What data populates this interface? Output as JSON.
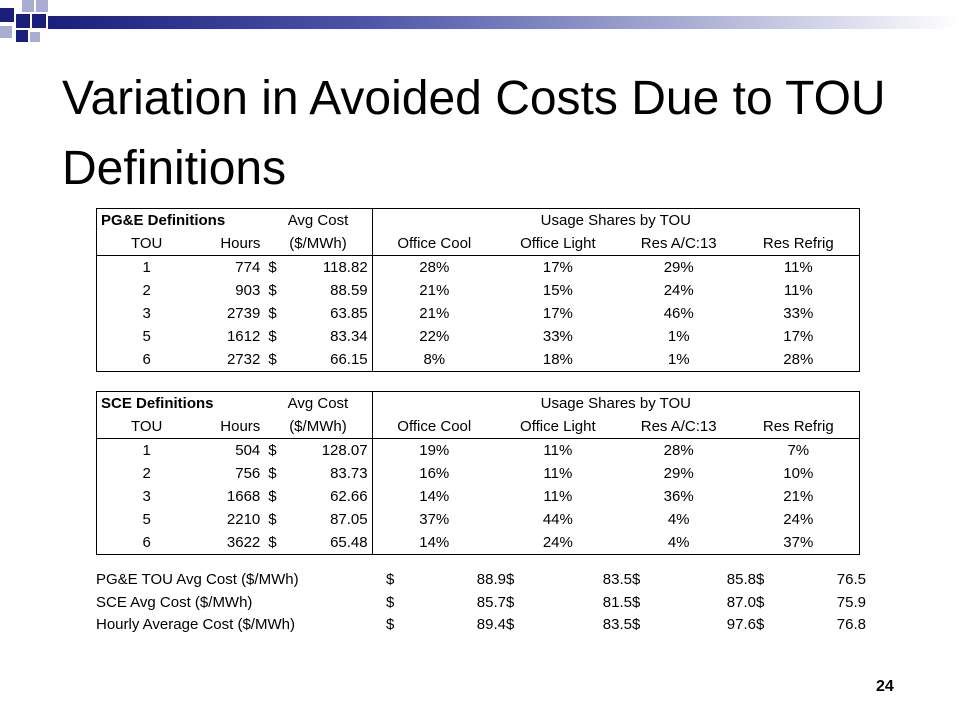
{
  "slide": {
    "title": "Variation in Avoided Costs Due to TOU Definitions",
    "page_number": "24"
  },
  "colors": {
    "accent_dark": "#1a1f7c",
    "accent_mid": "#4d55a8",
    "accent_light": "#a9add3"
  },
  "pge_table": {
    "caption": "PG&E Definitions",
    "avg_cost_header": "Avg Cost",
    "avg_cost_unit": "($/MWh)",
    "usage_header": "Usage Shares by TOU",
    "col_tou": "TOU",
    "col_hours": "Hours",
    "col_office_cool": "Office Cool",
    "col_office_light": "Office Light",
    "col_res_ac": "Res A/C:13",
    "col_res_refrig": "Res Refrig",
    "rows": [
      {
        "tou": "1",
        "hours": "774",
        "cur": "$",
        "cost": "118.82",
        "oc": "28%",
        "ol": "17%",
        "ac": "29%",
        "rf": "11%"
      },
      {
        "tou": "2",
        "hours": "903",
        "cur": "$",
        "cost": "88.59",
        "oc": "21%",
        "ol": "15%",
        "ac": "24%",
        "rf": "11%"
      },
      {
        "tou": "3",
        "hours": "2739",
        "cur": "$",
        "cost": "63.85",
        "oc": "21%",
        "ol": "17%",
        "ac": "46%",
        "rf": "33%"
      },
      {
        "tou": "5",
        "hours": "1612",
        "cur": "$",
        "cost": "83.34",
        "oc": "22%",
        "ol": "33%",
        "ac": "1%",
        "rf": "17%"
      },
      {
        "tou": "6",
        "hours": "2732",
        "cur": "$",
        "cost": "66.15",
        "oc": "8%",
        "ol": "18%",
        "ac": "1%",
        "rf": "28%"
      }
    ]
  },
  "sce_table": {
    "caption": "SCE Definitions",
    "avg_cost_header": "Avg Cost",
    "avg_cost_unit": "($/MWh)",
    "usage_header": "Usage Shares by TOU",
    "col_tou": "TOU",
    "col_hours": "Hours",
    "col_office_cool": "Office Cool",
    "col_office_light": "Office Light",
    "col_res_ac": "Res A/C:13",
    "col_res_refrig": "Res Refrig",
    "rows": [
      {
        "tou": "1",
        "hours": "504",
        "cur": "$",
        "cost": "128.07",
        "oc": "19%",
        "ol": "11%",
        "ac": "28%",
        "rf": "7%"
      },
      {
        "tou": "2",
        "hours": "756",
        "cur": "$",
        "cost": "83.73",
        "oc": "16%",
        "ol": "11%",
        "ac": "29%",
        "rf": "10%"
      },
      {
        "tou": "3",
        "hours": "1668",
        "cur": "$",
        "cost": "62.66",
        "oc": "14%",
        "ol": "11%",
        "ac": "36%",
        "rf": "21%"
      },
      {
        "tou": "5",
        "hours": "2210",
        "cur": "$",
        "cost": "87.05",
        "oc": "37%",
        "ol": "44%",
        "ac": "4%",
        "rf": "24%"
      },
      {
        "tou": "6",
        "hours": "3622",
        "cur": "$",
        "cost": "65.48",
        "oc": "14%",
        "ol": "24%",
        "ac": "4%",
        "rf": "37%"
      }
    ]
  },
  "summary": {
    "rows": [
      {
        "label": "PG&E TOU Avg Cost ($/MWh)",
        "values": [
          "88.9",
          "83.5",
          "85.8",
          "76.5"
        ]
      },
      {
        "label": "SCE Avg Cost ($/MWh)",
        "values": [
          "85.7",
          "81.5",
          "87.0",
          "75.9"
        ]
      },
      {
        "label": "Hourly Average Cost ($/MWh)",
        "values": [
          "89.4",
          "83.5",
          "97.6",
          "76.8"
        ]
      }
    ],
    "currency": "$"
  }
}
